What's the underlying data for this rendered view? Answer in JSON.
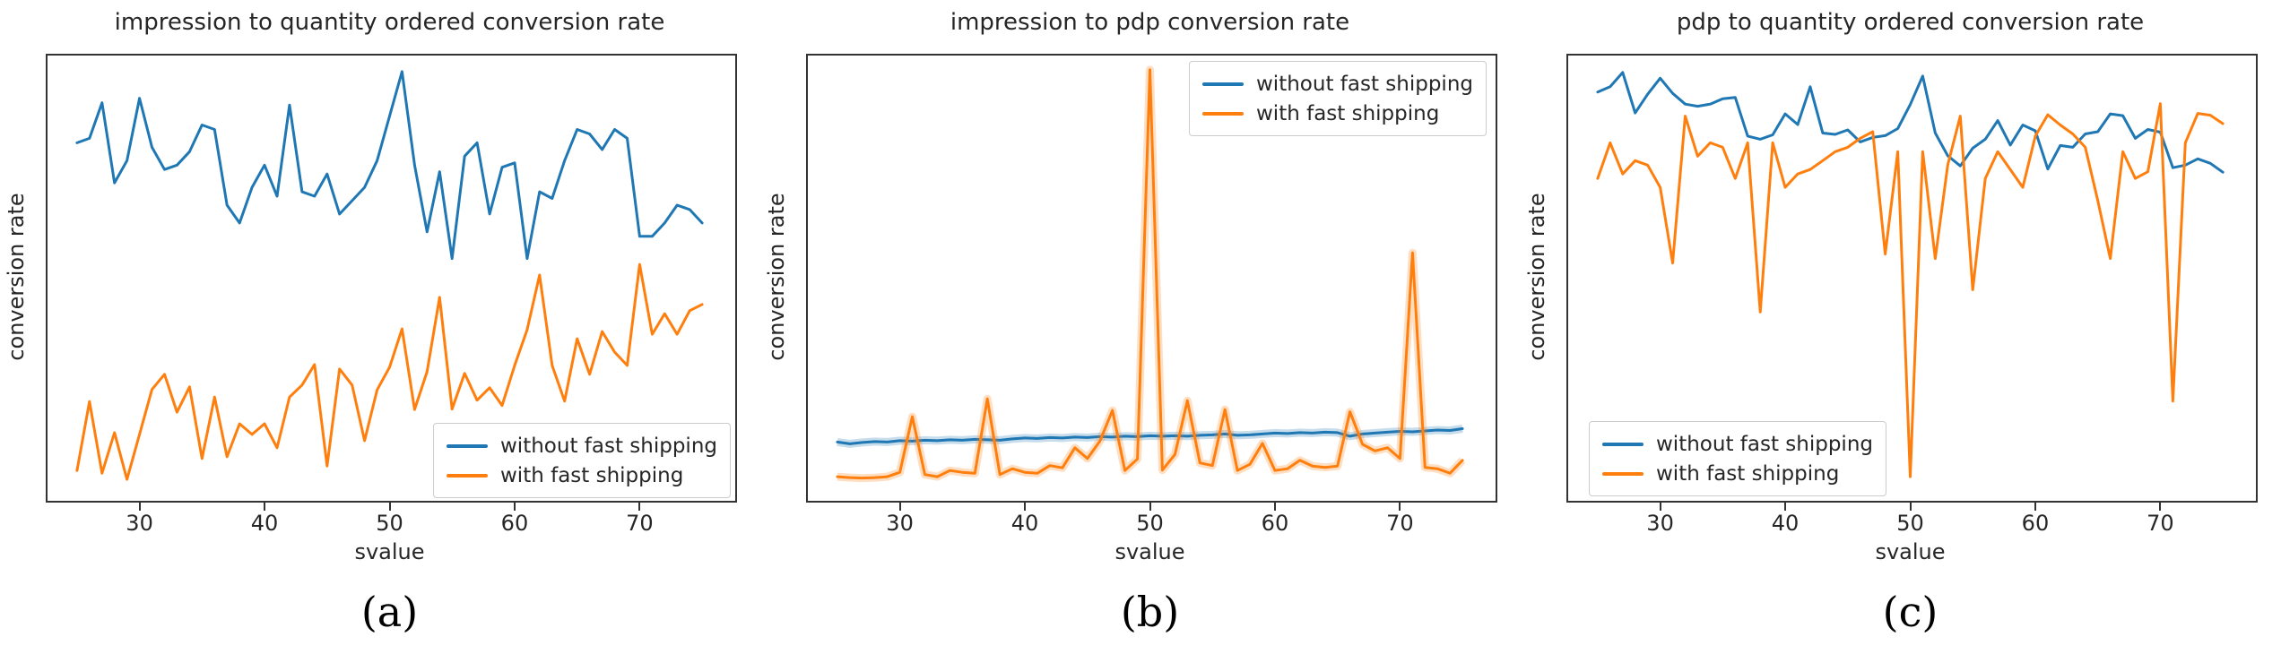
{
  "styles": {
    "accent_blue": "#1f77b4",
    "accent_orange": "#ff7f0e",
    "spine_color": "#333333",
    "text_color": "#262626"
  },
  "chart_data": [
    {
      "type": "line",
      "title": "impression to quantity ordered conversion rate",
      "caption": "(a)",
      "xlabel": "svalue",
      "ylabel": "conversion rate",
      "x_ticks": [
        30,
        40,
        50,
        60,
        70
      ],
      "xlim": [
        22.5,
        77.5
      ],
      "ylim": [
        0,
        1
      ],
      "y_ticks": [],
      "y_note": "y axis has no tick labels; values estimated as fraction of plot height (0=bottom, 1=top)",
      "grid": false,
      "legend": {
        "position": "lower right",
        "entries": [
          "without fast shipping",
          "with fast shipping"
        ]
      },
      "x_start": 25,
      "x_step": 1,
      "series": [
        {
          "name": "without fast shipping",
          "color": "#1f77b4",
          "band": false,
          "values": [
            0.8,
            0.81,
            0.89,
            0.71,
            0.76,
            0.9,
            0.79,
            0.74,
            0.75,
            0.78,
            0.84,
            0.83,
            0.66,
            0.62,
            0.7,
            0.75,
            0.68,
            0.885,
            0.69,
            0.68,
            0.73,
            0.64,
            0.67,
            0.7,
            0.76,
            0.86,
            0.96,
            0.75,
            0.6,
            0.735,
            0.54,
            0.77,
            0.8,
            0.64,
            0.745,
            0.755,
            0.54,
            0.69,
            0.675,
            0.76,
            0.83,
            0.82,
            0.785,
            0.83,
            0.81,
            0.59,
            0.59,
            0.62,
            0.66,
            0.65,
            0.62
          ]
        },
        {
          "name": "with fast shipping",
          "color": "#ff7f0e",
          "band": false,
          "values": [
            0.064,
            0.219,
            0.058,
            0.149,
            0.044,
            0.145,
            0.246,
            0.28,
            0.195,
            0.252,
            0.091,
            0.229,
            0.095,
            0.169,
            0.145,
            0.169,
            0.115,
            0.229,
            0.256,
            0.302,
            0.074,
            0.292,
            0.256,
            0.131,
            0.245,
            0.296,
            0.382,
            0.201,
            0.286,
            0.453,
            0.202,
            0.282,
            0.222,
            0.25,
            0.21,
            0.3,
            0.38,
            0.503,
            0.3,
            0.22,
            0.36,
            0.28,
            0.376,
            0.33,
            0.3,
            0.527,
            0.37,
            0.416,
            0.37,
            0.423,
            0.437
          ]
        }
      ]
    },
    {
      "type": "line",
      "title": "impression to pdp conversion rate",
      "caption": "(b)",
      "xlabel": "svalue",
      "ylabel": "conversion rate",
      "x_ticks": [
        30,
        40,
        50,
        60,
        70
      ],
      "xlim": [
        22.5,
        77.5
      ],
      "ylim": [
        0,
        1
      ],
      "y_ticks": [],
      "y_note": "y axis has no tick labels; values estimated as fraction of plot height (0=bottom, 1=top)",
      "grid": false,
      "legend": {
        "position": "upper right",
        "entries": [
          "without fast shipping",
          "with fast shipping"
        ]
      },
      "x_start": 25,
      "x_step": 1,
      "series": [
        {
          "name": "without fast shipping",
          "color": "#1f77b4",
          "band": true,
          "values": [
            0.128,
            0.124,
            0.127,
            0.129,
            0.128,
            0.131,
            0.13,
            0.132,
            0.131,
            0.133,
            0.132,
            0.134,
            0.133,
            0.132,
            0.135,
            0.137,
            0.136,
            0.138,
            0.137,
            0.139,
            0.138,
            0.14,
            0.139,
            0.141,
            0.14,
            0.142,
            0.141,
            0.142,
            0.141,
            0.143,
            0.144,
            0.146,
            0.143,
            0.144,
            0.146,
            0.148,
            0.147,
            0.149,
            0.148,
            0.15,
            0.149,
            0.141,
            0.146,
            0.148,
            0.15,
            0.152,
            0.151,
            0.153,
            0.155,
            0.154,
            0.158
          ]
        },
        {
          "name": "with fast shipping",
          "color": "#ff7f0e",
          "band": true,
          "values": [
            0.05,
            0.048,
            0.047,
            0.048,
            0.05,
            0.06,
            0.185,
            0.055,
            0.05,
            0.064,
            0.06,
            0.058,
            0.225,
            0.055,
            0.068,
            0.06,
            0.058,
            0.075,
            0.07,
            0.115,
            0.091,
            0.13,
            0.199,
            0.064,
            0.09,
            0.964,
            0.065,
            0.1,
            0.221,
            0.081,
            0.075,
            0.201,
            0.064,
            0.078,
            0.125,
            0.064,
            0.068,
            0.087,
            0.074,
            0.071,
            0.074,
            0.196,
            0.123,
            0.108,
            0.115,
            0.091,
            0.553,
            0.071,
            0.068,
            0.058,
            0.087
          ]
        }
      ]
    },
    {
      "type": "line",
      "title": "pdp to quantity ordered conversion rate",
      "caption": "(c)",
      "xlabel": "svalue",
      "ylabel": "conversion rate",
      "x_ticks": [
        30,
        40,
        50,
        60,
        70
      ],
      "xlim": [
        22.5,
        77.5
      ],
      "ylim": [
        0,
        1
      ],
      "y_ticks": [],
      "y_note": "y axis has no tick labels; values estimated as fraction of plot height (0=bottom, 1=top)",
      "grid": false,
      "legend": {
        "position": "lower left",
        "entries": [
          "without fast shipping",
          "with fast shipping"
        ]
      },
      "x_start": 25,
      "x_step": 1,
      "series": [
        {
          "name": "without fast shipping",
          "color": "#1f77b4",
          "band": false,
          "values": [
            0.914,
            0.926,
            0.958,
            0.867,
            0.909,
            0.945,
            0.911,
            0.887,
            0.882,
            0.887,
            0.899,
            0.902,
            0.815,
            0.808,
            0.818,
            0.865,
            0.841,
            0.926,
            0.822,
            0.819,
            0.829,
            0.802,
            0.812,
            0.816,
            0.832,
            0.886,
            0.95,
            0.822,
            0.771,
            0.748,
            0.788,
            0.808,
            0.85,
            0.795,
            0.84,
            0.827,
            0.741,
            0.794,
            0.79,
            0.82,
            0.825,
            0.865,
            0.861,
            0.81,
            0.83,
            0.824,
            0.744,
            0.75,
            0.764,
            0.754,
            0.734
          ]
        },
        {
          "name": "with fast shipping",
          "color": "#ff7f0e",
          "band": false,
          "values": [
            0.72,
            0.8,
            0.73,
            0.76,
            0.75,
            0.7,
            0.53,
            0.86,
            0.77,
            0.8,
            0.79,
            0.72,
            0.8,
            0.42,
            0.8,
            0.7,
            0.73,
            0.74,
            0.76,
            0.78,
            0.79,
            0.81,
            0.825,
            0.55,
            0.78,
            0.05,
            0.78,
            0.54,
            0.75,
            0.86,
            0.47,
            0.72,
            0.78,
            0.74,
            0.7,
            0.815,
            0.863,
            0.84,
            0.82,
            0.79,
            0.67,
            0.54,
            0.78,
            0.72,
            0.735,
            0.888,
            0.22,
            0.8,
            0.866,
            0.862,
            0.843
          ]
        }
      ]
    }
  ]
}
